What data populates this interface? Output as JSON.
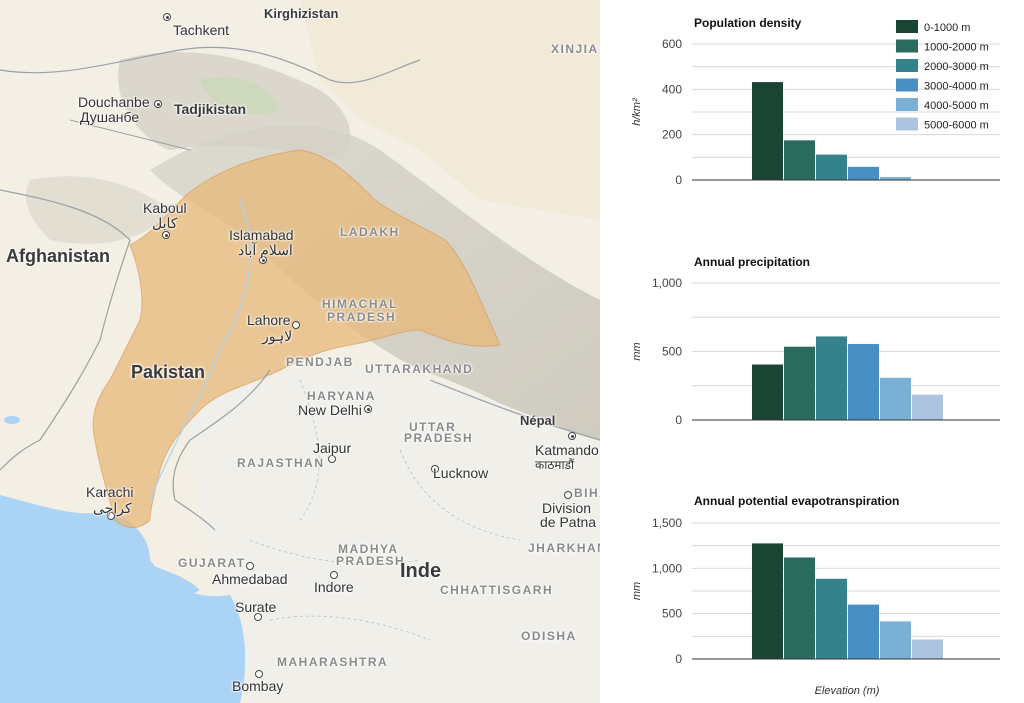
{
  "map": {
    "labels": {
      "kirghizistan": "Kirghizistan",
      "tachkent": "Tachkent",
      "xinjia": "XINJIA",
      "douchanbe": "Douchanbe",
      "douchanbe_cyr": "Душанбе",
      "tadjikistan": "Tadjikistan",
      "kaboul": "Kaboul",
      "kaboul_ar": "کابل",
      "afghanistan": "Afghanistan",
      "islamabad": "Islamabad",
      "islamabad_ur": "اسلام آباد",
      "ladakh": "LADAKH",
      "himachal": "HIMACHAL",
      "pradesh_hp": "PRADESH",
      "lahore": "Lahore",
      "lahore_ur": "لاہور",
      "pendjab": "PENDJAB",
      "uttarakhand": "UTTARAKHAND",
      "pakistan": "Pakistan",
      "haryana": "HARYANA",
      "new_delhi": "New Delhi",
      "nepal": "Népal",
      "uttar": "UTTAR",
      "pradesh_up": "PRADESH",
      "katmandou": "Katmando",
      "katmandou_ne": "काठमाडौं",
      "jaipur": "Jaipur",
      "rajasthan": "RAJASTHAN",
      "lucknow": "Lucknow",
      "karachi": "Karachi",
      "karachi_ur": "کراچی",
      "bih": "BIHA",
      "division": "Division",
      "de_patna": "de Patna",
      "jharkhand": "JHARKHAN",
      "gujarat": "GUJARAT",
      "madhya": "MADHYA",
      "pradesh_mp": "PRADESH",
      "inde": "Inde",
      "ahmedabad": "Ahmedabad",
      "indore": "Indore",
      "chhattisgarh": "CHHATTISGARH",
      "surate": "Surate",
      "odisha": "ODISHA",
      "maharashtra": "MAHARASHTRA",
      "bombay": "Bombay"
    },
    "colors": {
      "basin": "#e8b97a",
      "water": "#aad3f5",
      "land": "#f5f2ea"
    }
  },
  "legend": [
    "0-1000 m",
    "1000-2000 m",
    "2000-3000 m",
    "3000-4000 m",
    "4000-5000 m",
    "5000-6000 m"
  ],
  "palette": [
    "#1a4535",
    "#2b6b5c",
    "#36828a",
    "#4a8fc2",
    "#7ab0d6",
    "#aec3e0"
  ],
  "x_axis_label": "Elevation (m)",
  "chart_data": [
    {
      "type": "bar",
      "title": "Population density",
      "ylabel": "h/km²",
      "ylim": [
        0,
        600
      ],
      "yticks": [
        "0",
        "200",
        "400",
        "600"
      ],
      "categories": [
        "0-1000 m",
        "1000-2000 m",
        "2000-3000 m",
        "3000-4000 m",
        "4000-5000 m",
        "5000-6000 m"
      ],
      "values": [
        432,
        175,
        112,
        58,
        13,
        0
      ]
    },
    {
      "type": "bar",
      "title": "Annual precipitation",
      "ylabel": "mm",
      "ylim": [
        0,
        1000
      ],
      "yticks": [
        "0",
        "500",
        "1,000"
      ],
      "categories": [
        "0-1000 m",
        "1000-2000 m",
        "2000-3000 m",
        "3000-4000 m",
        "4000-5000 m",
        "5000-6000 m"
      ],
      "values": [
        405,
        535,
        610,
        555,
        308,
        185
      ]
    },
    {
      "type": "bar",
      "title": "Annual potential evapotranspiration",
      "ylabel": "mm",
      "ylim": [
        0,
        1500
      ],
      "yticks": [
        "0",
        "500",
        "1,000",
        "1,500"
      ],
      "categories": [
        "0-1000 m",
        "1000-2000 m",
        "2000-3000 m",
        "3000-4000 m",
        "4000-5000 m",
        "5000-6000 m"
      ],
      "values": [
        1275,
        1120,
        885,
        600,
        415,
        215
      ],
      "xlabel": "Elevation (m)"
    }
  ]
}
